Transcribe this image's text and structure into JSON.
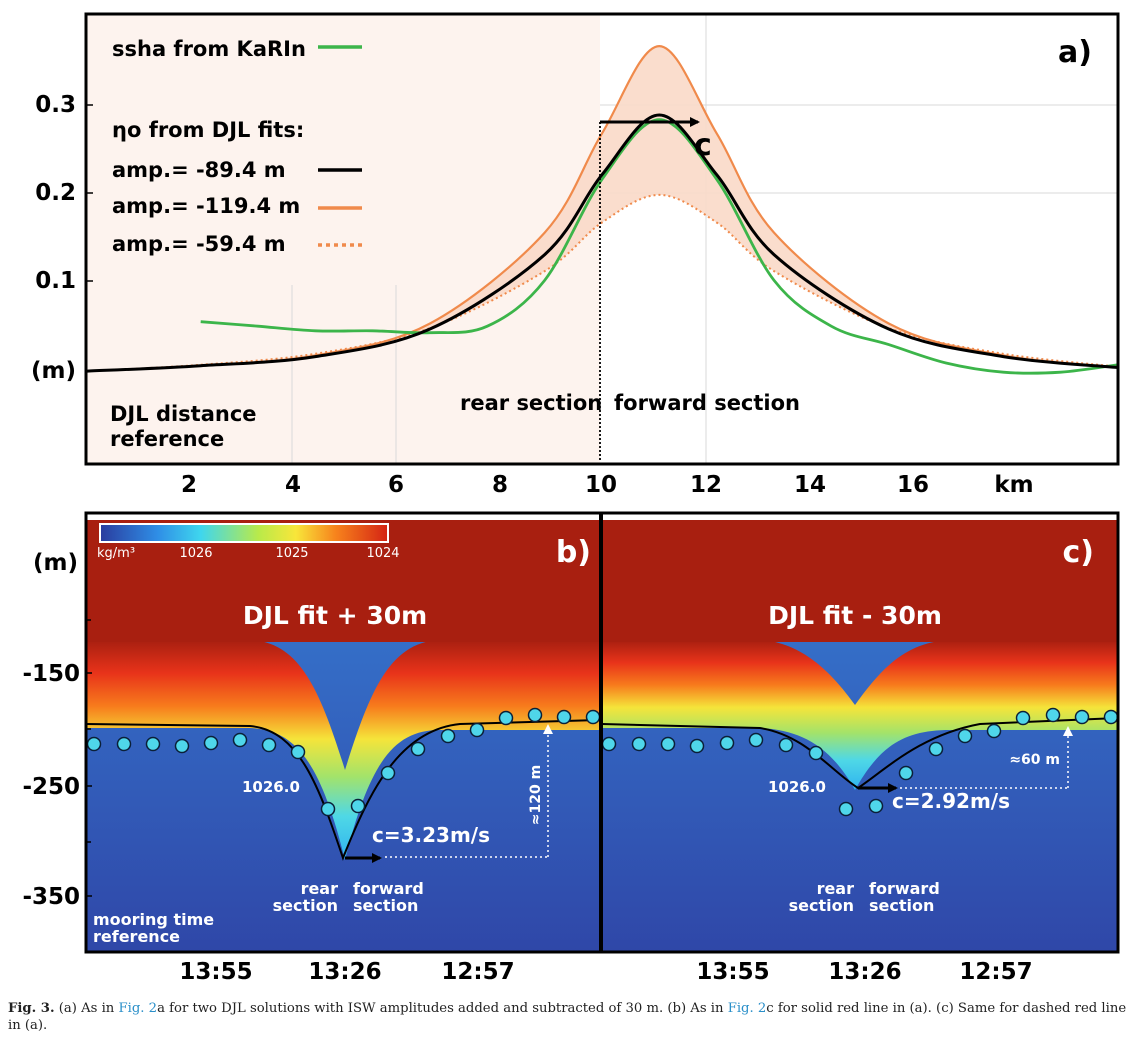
{
  "panel_a": {
    "label": "a)",
    "y_unit": "(m)",
    "y_ticks": [
      "0.1",
      "0.2",
      "0.3"
    ],
    "x_ticks": [
      "2",
      "4",
      "6",
      "8",
      "10",
      "12",
      "14",
      "16"
    ],
    "x_unit": "km",
    "legend": {
      "ssha": "ssha from KaRIn",
      "djl_header": "ηo from DJL fits:",
      "fit_black": "amp.= -89.4 m",
      "fit_orange": "amp.= -119.4 m",
      "fit_dotted": "amp.= -59.4 m"
    },
    "speed_label": "c",
    "rear_label": "rear section",
    "forward_label": "forward section",
    "reference_line1": "DJL distance",
    "reference_line2": "reference"
  },
  "panel_b": {
    "label": "b)",
    "title": "DJL fit + 30m",
    "isopycnal": "1026.0",
    "speed": "c=3.23m/s",
    "amplitude": "≈120 m",
    "rear1": "rear",
    "rear2": "section",
    "fwd1": "forward",
    "fwd2": "section",
    "ref1": "mooring time",
    "ref2": "reference",
    "time_ticks": [
      "13:55",
      "13:26",
      "12:57"
    ]
  },
  "panel_c": {
    "label": "c)",
    "title": "DJL fit - 30m",
    "isopycnal": "1026.0",
    "speed": "c=2.92m/s",
    "amplitude": "≈60 m",
    "rear1": "rear",
    "rear2": "section",
    "fwd1": "forward",
    "fwd2": "section",
    "time_ticks": [
      "13:55",
      "13:26",
      "12:57"
    ]
  },
  "depth_axis": {
    "unit": "(m)",
    "ticks": [
      "-150",
      "-250",
      "-350"
    ]
  },
  "colorbar": {
    "unit": "kg/m³",
    "ticks": [
      "1026",
      "1025",
      "1024"
    ]
  },
  "colors": {
    "ssha": "#3cb54a",
    "fit_black": "#000000",
    "fit_orange": "#f08a4b",
    "band": "#fad9c8",
    "rear_bg": "#fdf3ee",
    "deep": "#3057b8",
    "top": "#a81f10"
  },
  "caption": {
    "fig": "Fig. 3.",
    "t1": " (a) As in ",
    "ref1": "Fig. 2",
    "t2": "a for two DJL solutions with ISW amplitudes added and subtracted of 30 m. (b) As in ",
    "ref2": "Fig. 2",
    "t3": "c for solid red line in (a). (c) Same for dashed red line in (a)."
  },
  "chart_data": [
    {
      "type": "line",
      "panel": "a",
      "x": [
        0,
        2,
        4,
        6,
        8,
        9,
        10,
        11,
        12,
        14,
        16,
        18
      ],
      "xlim": [
        0,
        18
      ],
      "ylim": [
        -0.1,
        0.39
      ],
      "series": [
        {
          "name": "ssha from KaRIn",
          "x": [
            2,
            3,
            4,
            5,
            6,
            7,
            8,
            9,
            10,
            11,
            12,
            13,
            14,
            15,
            16,
            17,
            18
          ],
          "values": [
            0.055,
            0.05,
            0.045,
            0.045,
            0.043,
            0.05,
            0.1,
            0.21,
            0.275,
            0.21,
            0.1,
            0.05,
            0.03,
            0.01,
            0.0,
            0.0,
            0.008
          ]
        },
        {
          "name": "amp.= -89.4 m",
          "values": [
            0.001,
            0.007,
            0.017,
            0.047,
            0.128,
            0.215,
            0.28,
            0.215,
            0.128,
            0.047,
            0.017,
            0.005
          ]
        },
        {
          "name": "amp.= -119.4 m",
          "values": [
            0.001,
            0.007,
            0.018,
            0.053,
            0.152,
            0.26,
            0.355,
            0.26,
            0.152,
            0.053,
            0.018,
            0.005
          ]
        },
        {
          "name": "amp.= -59.4 m",
          "values": [
            0.001,
            0.008,
            0.02,
            0.048,
            0.11,
            0.163,
            0.193,
            0.163,
            0.11,
            0.048,
            0.02,
            0.006
          ]
        }
      ]
    }
  ]
}
